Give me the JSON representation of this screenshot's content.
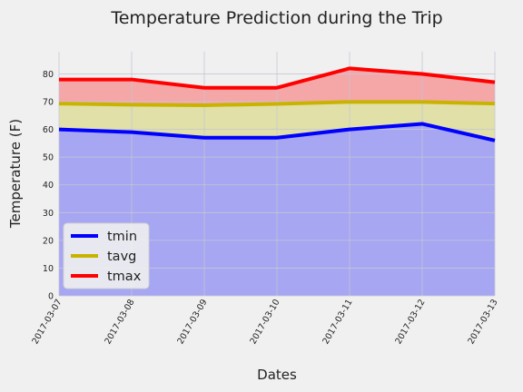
{
  "chart_data": {
    "type": "area",
    "title": "Temperature Prediction during the Trip",
    "xlabel": "Dates",
    "ylabel": "Temperature (F)",
    "categories": [
      "2017-03-07",
      "2017-03-08",
      "2017-03-09",
      "2017-03-10",
      "2017-03-11",
      "2017-03-12",
      "2017-03-13"
    ],
    "ylim": [
      0,
      88
    ],
    "yticks": [
      0,
      10,
      20,
      30,
      40,
      50,
      60,
      70,
      80
    ],
    "grid": true,
    "legend_position": "lower-left",
    "series": [
      {
        "name": "tmin",
        "color": "#0000ff",
        "fill": "#a6a6f2",
        "values": [
          60,
          59,
          57,
          57,
          60,
          62,
          56
        ]
      },
      {
        "name": "tavg",
        "color": "#c8b400",
        "fill": "#e0e0a8",
        "values": [
          69.3,
          68.9,
          68.7,
          69.2,
          69.9,
          69.9,
          69.3
        ]
      },
      {
        "name": "tmax",
        "color": "#ff0000",
        "fill": "#f5a6a6",
        "values": [
          78,
          78,
          75,
          75,
          82,
          80,
          77
        ]
      }
    ]
  }
}
